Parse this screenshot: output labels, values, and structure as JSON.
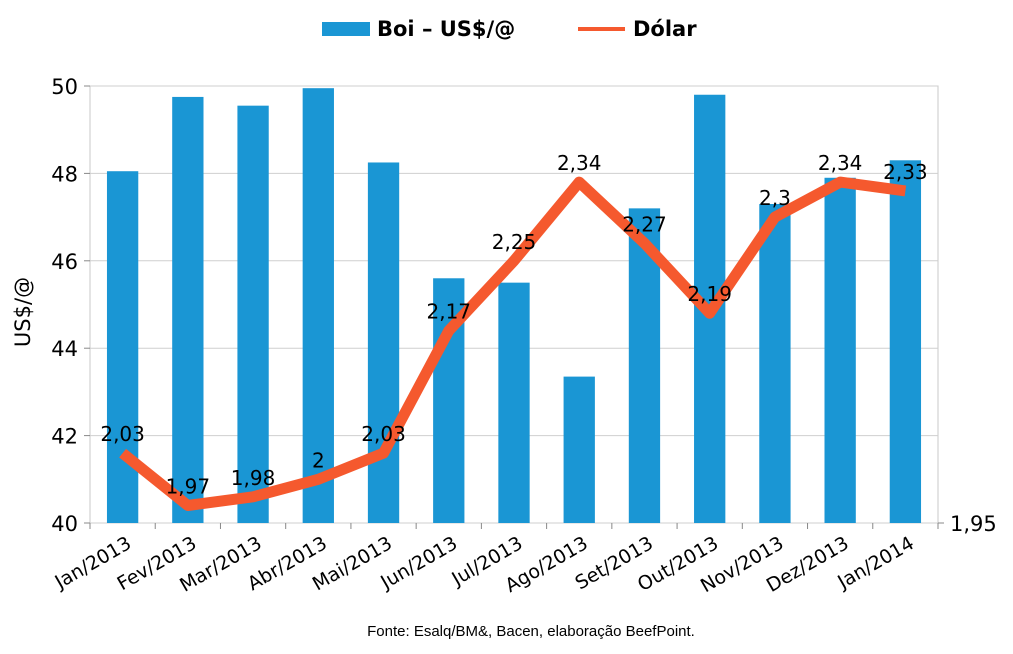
{
  "chart_data": {
    "type": "bar",
    "categories": [
      "Jan/2013",
      "Fev/2013",
      "Mar/2013",
      "Abr/2013",
      "Mai/2013",
      "Jun/2013",
      "Jul/2013",
      "Ago/2013",
      "Set/2013",
      "Out/2013",
      "Nov/2013",
      "Dez/2013",
      "Jan/2014"
    ],
    "series": [
      {
        "name": "Boi – US$/@",
        "type": "bar",
        "axis": "left",
        "color": "#1a96d4",
        "values": [
          48.05,
          49.75,
          49.55,
          49.95,
          48.25,
          45.6,
          45.5,
          43.35,
          47.2,
          49.8,
          47.3,
          47.9,
          48.3
        ]
      },
      {
        "name": "Dólar",
        "type": "line",
        "axis": "right",
        "color": "#f5592e",
        "values": [
          2.03,
          1.97,
          1.98,
          2.0,
          2.03,
          2.17,
          2.25,
          2.34,
          2.27,
          2.19,
          2.3,
          2.34,
          2.33
        ],
        "labels": [
          "2,03",
          "1,97",
          "1,98",
          "2",
          "2,03",
          "2,17",
          "2,25",
          "2,34",
          "2,27",
          "2,19",
          "2,3",
          "2,34",
          "2,33"
        ]
      }
    ],
    "ylabel": "US$/@",
    "ylim": [
      40,
      50
    ],
    "yticks": [
      "40",
      "42",
      "44",
      "46",
      "48",
      "50"
    ],
    "y2lim": [
      1.95,
      2.45
    ],
    "y2ticks": [
      "1,95"
    ],
    "grid": true,
    "legend_position": "top-center",
    "source": "Fonte: Esalq/BM&, Bacen, elaboração BeefPoint."
  }
}
